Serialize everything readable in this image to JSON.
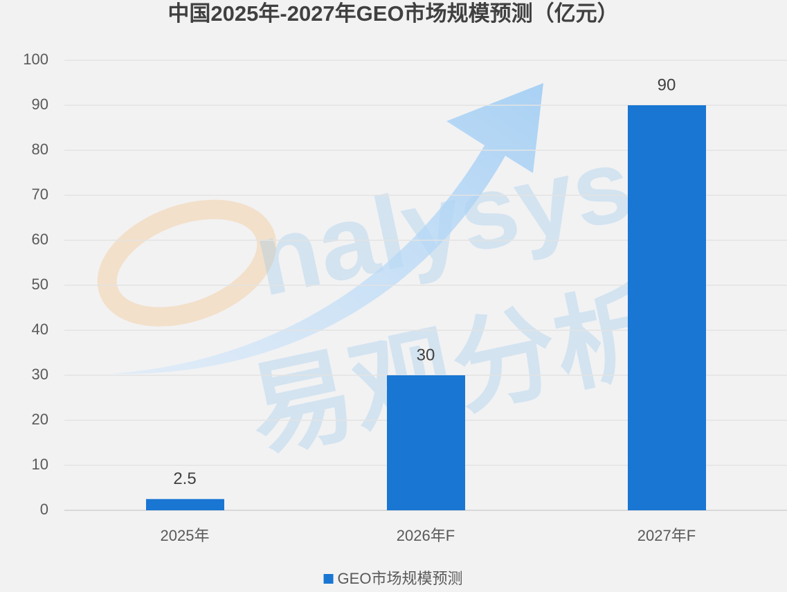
{
  "chart_data": {
    "type": "bar",
    "title": "中国2025年-2027年GEO市场规模预测（亿元）",
    "categories": [
      "2025年",
      "2026年F",
      "2027年F"
    ],
    "series": [
      {
        "name": "GEO市场规模预测",
        "color": "#1976d2",
        "values": [
          2.5,
          30,
          90
        ]
      }
    ],
    "ylim": [
      0,
      100
    ],
    "yticks": [
      0,
      10,
      20,
      30,
      40,
      50,
      60,
      70,
      80,
      90,
      100
    ],
    "grid": true,
    "legend": "bottom",
    "watermark": [
      "nalysys",
      "易观分析"
    ]
  }
}
